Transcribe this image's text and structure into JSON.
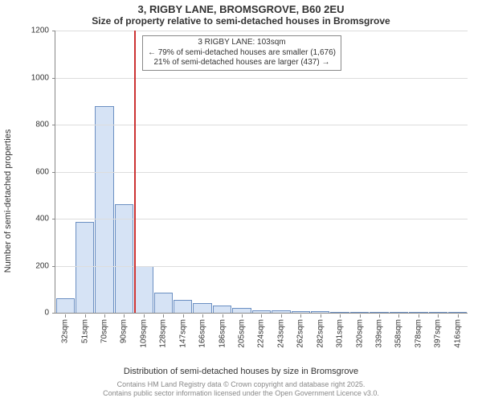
{
  "title": "3, RIGBY LANE, BROMSGROVE, B60 2EU",
  "subtitle": "Size of property relative to semi-detached houses in Bromsgrove",
  "y_axis_label": "Number of semi-detached properties",
  "x_axis_label": "Distribution of semi-detached houses by size in Bromsgrove",
  "ylim": [
    0,
    1200
  ],
  "ytick_step": 200,
  "x_categories": [
    "32sqm",
    "51sqm",
    "70sqm",
    "90sqm",
    "109sqm",
    "128sqm",
    "147sqm",
    "166sqm",
    "186sqm",
    "205sqm",
    "224sqm",
    "243sqm",
    "262sqm",
    "282sqm",
    "301sqm",
    "320sqm",
    "339sqm",
    "358sqm",
    "378sqm",
    "397sqm",
    "416sqm"
  ],
  "values": [
    60,
    385,
    880,
    460,
    200,
    85,
    55,
    40,
    30,
    20,
    12,
    10,
    8,
    6,
    3,
    2,
    1,
    1,
    1,
    1,
    1
  ],
  "bar_fill": "#d6e3f5",
  "bar_border": "#6b8fc2",
  "grid_color": "#dddddd",
  "axis_color": "#888888",
  "background_color": "#ffffff",
  "ref_line": {
    "color": "#cc3333",
    "between_category_index": 3
  },
  "annotation": {
    "line1": "3 RIGBY LANE: 103sqm",
    "line2": "← 79% of semi-detached houses are smaller (1,676)",
    "line3": "21% of semi-detached houses are larger (437) →",
    "border_color": "#888888",
    "bg": "#ffffff"
  },
  "footer_line1": "Contains HM Land Registry data © Crown copyright and database right 2025.",
  "footer_line2": "Contains public sector information licensed under the Open Government Licence v3.0.",
  "footer_color": "#888888",
  "title_fontsize": 13,
  "subtitle_fontsize": 12,
  "axis_label_fontsize": 11,
  "tick_fontsize": 10,
  "annotation_fontsize": 10,
  "footer_fontsize": 9
}
